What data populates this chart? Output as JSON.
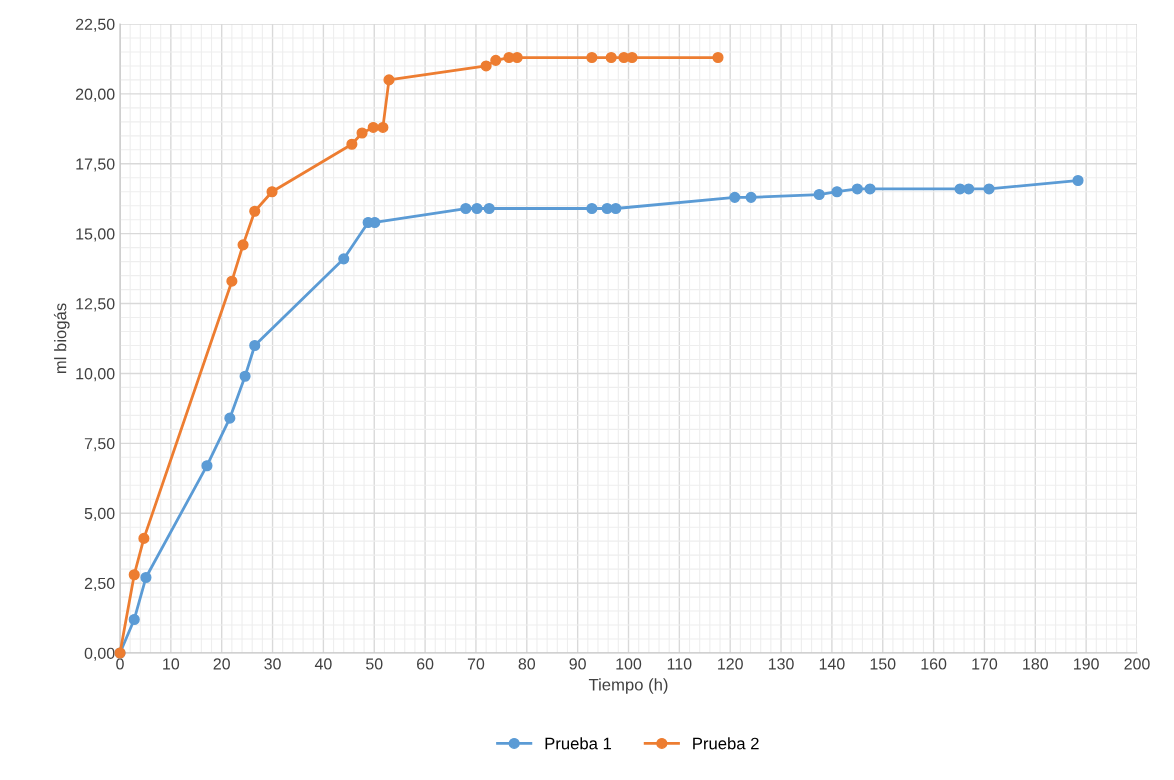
{
  "chart_data": {
    "type": "line",
    "xlabel": "Tiempo (h)",
    "ylabel": "ml biogás",
    "marker": "circle",
    "line_style": "solid",
    "grid": true,
    "legend": "bottom",
    "xlim": [
      0,
      200
    ],
    "xticks": [
      0,
      10,
      20,
      30,
      40,
      50,
      60,
      70,
      80,
      90,
      100,
      110,
      120,
      130,
      140,
      150,
      160,
      170,
      180,
      190,
      200
    ],
    "ylim": [
      0,
      22.5
    ],
    "yticks": [
      {
        "value": 0,
        "label": "0,00"
      },
      {
        "value": 2.5,
        "label": "2,50"
      },
      {
        "value": 5,
        "label": "5,00"
      },
      {
        "value": 7.5,
        "label": "7,50"
      },
      {
        "value": 10,
        "label": "10,00"
      },
      {
        "value": 12.5,
        "label": "12,50"
      },
      {
        "value": 15,
        "label": "15,00"
      },
      {
        "value": 17.5,
        "label": "17,50"
      },
      {
        "value": 20,
        "label": "20,00"
      },
      {
        "value": 22.5,
        "label": "22,50"
      }
    ],
    "series": [
      {
        "name": "Prueba 1",
        "color": "#5b9bd5",
        "x": [
          0,
          2.8,
          5.1,
          17.1,
          21.6,
          24.6,
          26.5,
          44.0,
          48.8,
          50.1,
          68.0,
          70.2,
          72.6,
          92.8,
          95.8,
          97.5,
          120.9,
          124.1,
          137.5,
          141.0,
          145.0,
          147.5,
          165.2,
          166.9,
          170.9,
          188.4
        ],
        "values": [
          0,
          1.2,
          2.7,
          6.7,
          8.4,
          9.9,
          11.0,
          14.1,
          15.4,
          15.4,
          15.9,
          15.9,
          15.9,
          15.9,
          15.9,
          15.9,
          16.3,
          16.3,
          16.4,
          16.5,
          16.6,
          16.6,
          16.6,
          16.6,
          16.6,
          16.9
        ]
      },
      {
        "name": "Prueba 2",
        "color": "#ed7d31",
        "x": [
          0,
          2.8,
          4.7,
          22.0,
          24.2,
          26.5,
          29.9,
          45.6,
          47.6,
          49.8,
          51.7,
          52.9,
          72.0,
          73.9,
          76.5,
          78.1,
          92.8,
          96.6,
          99.1,
          100.7,
          117.6
        ],
        "values": [
          0,
          2.8,
          4.1,
          13.3,
          14.6,
          15.8,
          16.5,
          18.2,
          18.6,
          18.8,
          18.8,
          20.5,
          21.0,
          21.2,
          21.3,
          21.3,
          21.3,
          21.3,
          21.3,
          21.3,
          21.3
        ]
      }
    ]
  }
}
